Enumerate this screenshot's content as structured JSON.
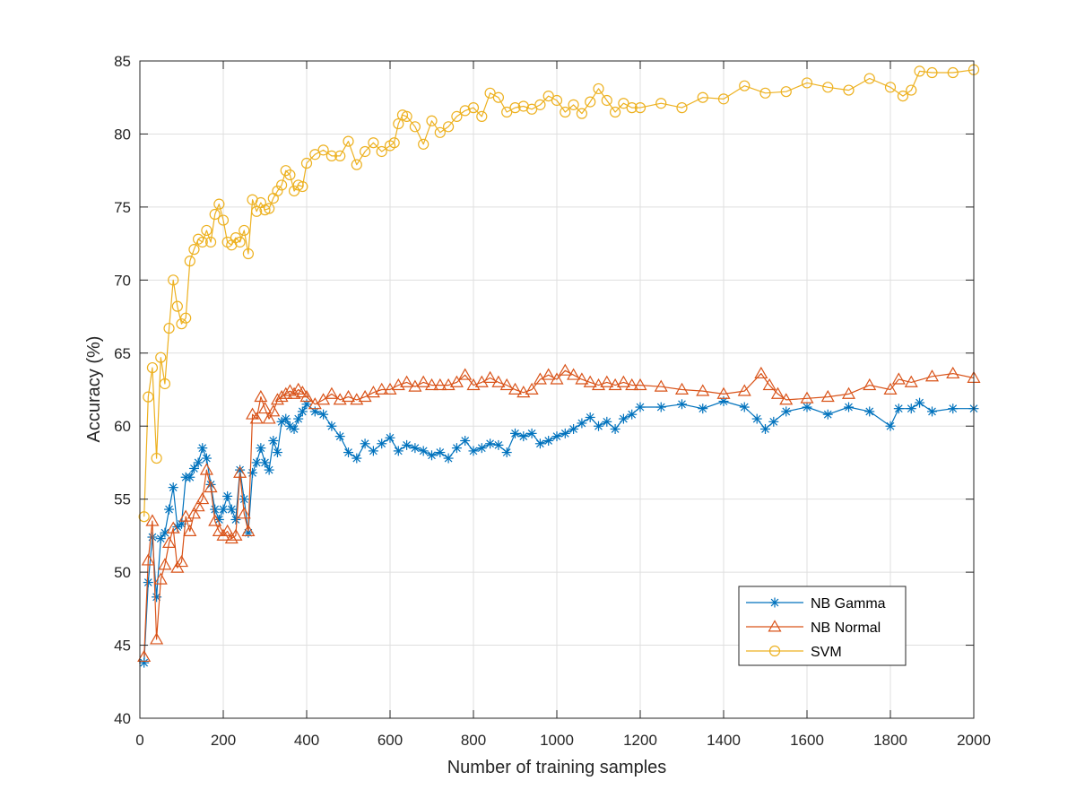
{
  "chart_data": {
    "type": "line",
    "xlabel": "Number of training samples",
    "ylabel": "Accuracy (%)",
    "xlim": [
      0,
      2000
    ],
    "ylim": [
      40,
      85
    ],
    "xticks": [
      0,
      200,
      400,
      600,
      800,
      1000,
      1200,
      1400,
      1600,
      1800,
      2000
    ],
    "yticks": [
      40,
      45,
      50,
      55,
      60,
      65,
      70,
      75,
      80,
      85
    ],
    "grid": true,
    "box": true,
    "legend_position": "lower-right",
    "series": [
      {
        "name": "NB Gamma",
        "color": "#0072BD",
        "marker": "asterisk",
        "x": [
          10,
          20,
          30,
          40,
          50,
          60,
          70,
          80,
          90,
          100,
          110,
          120,
          130,
          140,
          150,
          160,
          170,
          180,
          190,
          200,
          210,
          220,
          230,
          240,
          250,
          260,
          270,
          280,
          290,
          300,
          310,
          320,
          330,
          340,
          350,
          360,
          370,
          380,
          390,
          400,
          420,
          440,
          460,
          480,
          500,
          520,
          540,
          560,
          580,
          600,
          620,
          640,
          660,
          680,
          700,
          720,
          740,
          760,
          780,
          800,
          820,
          840,
          860,
          880,
          900,
          920,
          940,
          960,
          980,
          1000,
          1020,
          1040,
          1060,
          1080,
          1100,
          1120,
          1140,
          1160,
          1180,
          1200,
          1250,
          1300,
          1350,
          1400,
          1450,
          1480,
          1500,
          1520,
          1550,
          1600,
          1650,
          1700,
          1750,
          1800,
          1820,
          1850,
          1870,
          1900,
          1950,
          2000
        ],
        "y": [
          43.8,
          49.3,
          52.4,
          48.3,
          52.3,
          52.7,
          54.3,
          55.8,
          53.1,
          53.3,
          56.5,
          56.5,
          57.1,
          57.5,
          58.5,
          57.8,
          56.0,
          54.3,
          53.6,
          54.3,
          55.2,
          54.3,
          53.6,
          57.0,
          55.0,
          52.7,
          56.8,
          57.5,
          58.5,
          57.5,
          57.0,
          59.0,
          58.2,
          60.3,
          60.5,
          60.0,
          59.8,
          60.5,
          61.0,
          61.5,
          61.0,
          60.8,
          60.0,
          59.3,
          58.2,
          57.8,
          58.8,
          58.3,
          58.8,
          59.2,
          58.3,
          58.7,
          58.5,
          58.3,
          58.0,
          58.2,
          57.8,
          58.5,
          59.0,
          58.3,
          58.5,
          58.8,
          58.7,
          58.2,
          59.5,
          59.3,
          59.5,
          58.8,
          59.0,
          59.3,
          59.5,
          59.8,
          60.2,
          60.6,
          60.0,
          60.3,
          59.8,
          60.5,
          60.8,
          61.3,
          61.3,
          61.5,
          61.2,
          61.7,
          61.3,
          60.5,
          59.8,
          60.3,
          61.0,
          61.3,
          60.8,
          61.3,
          61.0,
          60.0,
          61.2,
          61.2,
          61.6,
          61.0,
          61.2,
          61.2
        ]
      },
      {
        "name": "NB Normal",
        "color": "#D95319",
        "marker": "triangle",
        "x": [
          10,
          20,
          30,
          40,
          50,
          60,
          70,
          80,
          90,
          100,
          110,
          120,
          130,
          140,
          150,
          160,
          170,
          180,
          190,
          200,
          210,
          220,
          230,
          240,
          250,
          260,
          270,
          280,
          290,
          300,
          310,
          320,
          330,
          340,
          350,
          360,
          370,
          380,
          390,
          400,
          420,
          440,
          460,
          480,
          500,
          520,
          540,
          560,
          580,
          600,
          620,
          640,
          660,
          680,
          700,
          720,
          740,
          760,
          780,
          800,
          820,
          840,
          860,
          880,
          900,
          920,
          940,
          960,
          980,
          1000,
          1020,
          1040,
          1060,
          1080,
          1100,
          1120,
          1140,
          1160,
          1180,
          1200,
          1250,
          1300,
          1350,
          1400,
          1450,
          1490,
          1510,
          1530,
          1550,
          1600,
          1650,
          1700,
          1750,
          1800,
          1820,
          1850,
          1900,
          1950,
          2000
        ],
        "y": [
          44.2,
          50.8,
          53.5,
          45.4,
          49.5,
          50.5,
          52.0,
          53.0,
          50.3,
          50.7,
          53.8,
          52.8,
          54.0,
          54.5,
          55.0,
          57.0,
          55.8,
          53.5,
          52.8,
          52.5,
          52.8,
          52.3,
          52.5,
          56.8,
          54.0,
          52.8,
          60.8,
          60.5,
          62.0,
          61.2,
          60.5,
          61.0,
          61.8,
          62.0,
          62.2,
          62.4,
          62.2,
          62.5,
          62.3,
          62.0,
          61.5,
          61.8,
          62.2,
          61.8,
          62.0,
          61.8,
          62.0,
          62.3,
          62.5,
          62.5,
          62.8,
          63.0,
          62.7,
          63.0,
          62.8,
          62.8,
          62.8,
          63.0,
          63.5,
          62.8,
          63.0,
          63.3,
          63.0,
          62.8,
          62.5,
          62.3,
          62.5,
          63.2,
          63.5,
          63.2,
          63.8,
          63.5,
          63.2,
          63.0,
          62.8,
          63.0,
          62.8,
          63.0,
          62.8,
          62.8,
          62.7,
          62.5,
          62.4,
          62.2,
          62.4,
          63.6,
          62.8,
          62.2,
          61.8,
          61.9,
          62.0,
          62.2,
          62.8,
          62.5,
          63.2,
          63.0,
          63.4,
          63.6,
          63.3
        ]
      },
      {
        "name": "SVM",
        "color": "#EDB120",
        "marker": "circle",
        "x": [
          10,
          20,
          30,
          40,
          50,
          60,
          70,
          80,
          90,
          100,
          110,
          120,
          130,
          140,
          150,
          160,
          170,
          180,
          190,
          200,
          210,
          220,
          230,
          240,
          250,
          260,
          270,
          280,
          290,
          300,
          310,
          320,
          330,
          340,
          350,
          360,
          370,
          380,
          390,
          400,
          420,
          440,
          460,
          480,
          500,
          520,
          540,
          560,
          580,
          600,
          610,
          620,
          630,
          640,
          660,
          680,
          700,
          720,
          740,
          760,
          780,
          800,
          820,
          840,
          860,
          880,
          900,
          920,
          940,
          960,
          980,
          1000,
          1020,
          1040,
          1060,
          1080,
          1100,
          1120,
          1140,
          1160,
          1180,
          1200,
          1250,
          1300,
          1350,
          1400,
          1450,
          1500,
          1550,
          1600,
          1650,
          1700,
          1750,
          1800,
          1830,
          1850,
          1870,
          1900,
          1950,
          2000
        ],
        "y": [
          53.8,
          62.0,
          64.0,
          57.8,
          64.7,
          62.9,
          66.7,
          70.0,
          68.2,
          67.0,
          67.4,
          71.3,
          72.1,
          72.8,
          72.6,
          73.4,
          72.6,
          74.5,
          75.2,
          74.1,
          72.6,
          72.4,
          72.9,
          72.6,
          73.4,
          71.8,
          75.5,
          74.7,
          75.3,
          74.8,
          74.9,
          75.6,
          76.1,
          76.5,
          77.5,
          77.2,
          76.1,
          76.5,
          76.4,
          78.0,
          78.6,
          78.9,
          78.5,
          78.5,
          79.5,
          77.9,
          78.8,
          79.4,
          78.8,
          79.2,
          79.4,
          80.7,
          81.3,
          81.2,
          80.5,
          79.3,
          80.9,
          80.1,
          80.5,
          81.2,
          81.6,
          81.8,
          81.2,
          82.8,
          82.5,
          81.5,
          81.8,
          81.9,
          81.7,
          82.0,
          82.6,
          82.3,
          81.5,
          82.0,
          81.4,
          82.2,
          83.1,
          82.3,
          81.5,
          82.1,
          81.8,
          81.8,
          82.1,
          81.8,
          82.5,
          82.4,
          83.3,
          82.8,
          82.9,
          83.5,
          83.2,
          83.0,
          83.8,
          83.2,
          82.6,
          83.0,
          84.3,
          84.2,
          84.2,
          84.4
        ]
      }
    ]
  }
}
